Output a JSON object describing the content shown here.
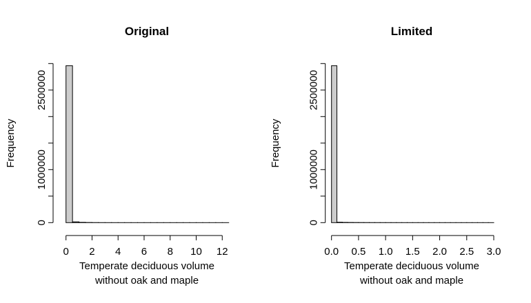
{
  "chart_data": [
    {
      "type": "bar",
      "title": "Original",
      "xlabel": "Temperate deciduous volume\nwithout oak and maple",
      "xlabel_lines": [
        "Temperate deciduous volume",
        "without oak and maple"
      ],
      "ylabel": "Frequency",
      "xlim": [
        0,
        12.5
      ],
      "ylim": [
        0,
        3000000
      ],
      "bin_width": 0.5,
      "bin_starts": [
        0,
        0.5,
        1,
        1.5,
        2,
        2.5,
        3,
        3.5,
        4,
        4.5,
        5,
        5.5,
        6,
        6.5,
        7,
        7.5,
        8,
        8.5,
        9,
        9.5,
        10,
        10.5,
        11,
        11.5,
        12
      ],
      "values": [
        2960000,
        15000,
        6000,
        3000,
        1500,
        800,
        500,
        300,
        200,
        150,
        100,
        80,
        60,
        50,
        40,
        30,
        25,
        20,
        15,
        10,
        8,
        6,
        5,
        4,
        3
      ],
      "xticks": [
        0,
        2,
        4,
        6,
        8,
        10,
        12
      ],
      "xtick_labels": [
        "0",
        "2",
        "4",
        "6",
        "8",
        "10",
        "12"
      ],
      "yticks": [
        0,
        500000,
        1000000,
        1500000,
        2000000,
        2500000,
        3000000
      ],
      "ytick_labels": [
        "0",
        "",
        "1000000",
        "",
        "",
        "2500000",
        ""
      ],
      "fill_color": "#cccccc",
      "grid": false
    },
    {
      "type": "bar",
      "title": "Limited",
      "xlabel": "Temperate deciduous volume\nwithout oak and maple",
      "xlabel_lines": [
        "Temperate deciduous volume",
        "without oak and maple"
      ],
      "ylabel": "Frequency",
      "xlim": [
        0,
        3.0
      ],
      "ylim": [
        0,
        3000000
      ],
      "bin_width": 0.1,
      "bin_starts": [
        0,
        0.1,
        0.2,
        0.3,
        0.4,
        0.5,
        0.6,
        0.7,
        0.8,
        0.9,
        1.0,
        1.1,
        1.2,
        1.3,
        1.4,
        1.5,
        1.6,
        1.7,
        1.8,
        1.9,
        2.0,
        2.1,
        2.2,
        2.3,
        2.4,
        2.5,
        2.6,
        2.7,
        2.8,
        2.9
      ],
      "values": [
        2960000,
        8000,
        5000,
        3500,
        2500,
        2000,
        1600,
        1300,
        1100,
        900,
        800,
        700,
        600,
        500,
        450,
        400,
        350,
        300,
        280,
        250,
        230,
        210,
        190,
        170,
        150,
        140,
        130,
        120,
        110,
        100
      ],
      "xticks": [
        0,
        0.5,
        1.0,
        1.5,
        2.0,
        2.5,
        3.0
      ],
      "xtick_labels": [
        "0.0",
        "0.5",
        "1.0",
        "1.5",
        "2.0",
        "2.5",
        "3.0"
      ],
      "yticks": [
        0,
        500000,
        1000000,
        1500000,
        2000000,
        2500000,
        3000000
      ],
      "ytick_labels": [
        "0",
        "",
        "1000000",
        "",
        "",
        "2500000",
        ""
      ],
      "fill_color": "#cccccc",
      "grid": false
    }
  ]
}
